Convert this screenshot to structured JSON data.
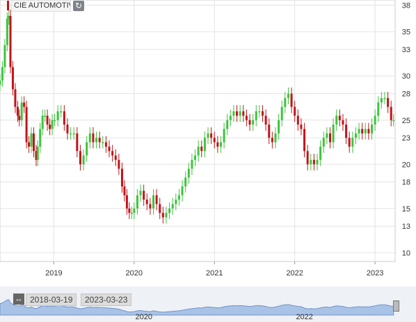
{
  "ticker_label": "CIE AUTOMOTIV",
  "icons": {
    "refresh": "refresh-icon",
    "expand": "expand-arrows-icon"
  },
  "colors": {
    "up": "#3ec43e",
    "down": "#c0151a",
    "navigator_fill": "#a9c3e6",
    "navigator_line": "#6f93c7"
  },
  "navigator": {
    "range_start": "2018-03-19",
    "range_end": "2023-03-23",
    "year_labels": [
      "2020",
      "2022"
    ]
  },
  "chart_data": {
    "type": "candlestick",
    "y_axis": {
      "min": 9,
      "max": 38.6,
      "ticks": [
        10,
        13,
        15,
        18,
        20,
        23,
        25,
        28,
        30,
        33,
        35,
        38
      ]
    },
    "x_axis": {
      "labels": [
        "2019",
        "2020",
        "2021",
        "2022",
        "2023"
      ],
      "start": 2018.33,
      "end": 2023.25
    },
    "grid": true,
    "closes": [
      [
        2018.33,
        29.5
      ],
      [
        2018.36,
        31.0
      ],
      [
        2018.39,
        33.5
      ],
      [
        2018.42,
        36.5
      ],
      [
        2018.44,
        36.8
      ],
      [
        2018.46,
        31.0
      ],
      [
        2018.49,
        28.5
      ],
      [
        2018.52,
        26.5
      ],
      [
        2018.55,
        25.5
      ],
      [
        2018.57,
        25.0
      ],
      [
        2018.6,
        27.0
      ],
      [
        2018.63,
        26.5
      ],
      [
        2018.66,
        22.5
      ],
      [
        2018.69,
        22.0
      ],
      [
        2018.72,
        23.5
      ],
      [
        2018.75,
        21.5
      ],
      [
        2018.78,
        20.5
      ],
      [
        2018.8,
        22.0
      ],
      [
        2018.83,
        24.0
      ],
      [
        2018.86,
        25.5
      ],
      [
        2018.89,
        25.5
      ],
      [
        2018.92,
        24.5
      ],
      [
        2018.95,
        24.0
      ],
      [
        2018.98,
        25.0
      ],
      [
        2019.01,
        25.0
      ],
      [
        2019.05,
        26.0
      ],
      [
        2019.09,
        26.0
      ],
      [
        2019.13,
        24.5
      ],
      [
        2019.17,
        23.5
      ],
      [
        2019.21,
        23.5
      ],
      [
        2019.25,
        23.5
      ],
      [
        2019.29,
        21.5
      ],
      [
        2019.33,
        20.0
      ],
      [
        2019.37,
        21.0
      ],
      [
        2019.41,
        22.5
      ],
      [
        2019.45,
        23.5
      ],
      [
        2019.49,
        22.5
      ],
      [
        2019.53,
        23.0
      ],
      [
        2019.57,
        22.5
      ],
      [
        2019.61,
        22.5
      ],
      [
        2019.65,
        22.0
      ],
      [
        2019.69,
        21.5
      ],
      [
        2019.73,
        21.0
      ],
      [
        2019.77,
        20.5
      ],
      [
        2019.81,
        19.5
      ],
      [
        2019.85,
        17.5
      ],
      [
        2019.88,
        16.5
      ],
      [
        2019.91,
        15.0
      ],
      [
        2019.94,
        14.5
      ],
      [
        2019.97,
        14.5
      ],
      [
        2020.0,
        15.0
      ],
      [
        2020.04,
        16.5
      ],
      [
        2020.08,
        17.0
      ],
      [
        2020.12,
        16.0
      ],
      [
        2020.16,
        15.5
      ],
      [
        2020.2,
        15.0
      ],
      [
        2020.24,
        16.5
      ],
      [
        2020.28,
        15.5
      ],
      [
        2020.32,
        14.5
      ],
      [
        2020.36,
        14.0
      ],
      [
        2020.4,
        14.5
      ],
      [
        2020.44,
        15.0
      ],
      [
        2020.48,
        15.5
      ],
      [
        2020.52,
        16.0
      ],
      [
        2020.56,
        16.5
      ],
      [
        2020.6,
        17.5
      ],
      [
        2020.64,
        18.5
      ],
      [
        2020.68,
        19.5
      ],
      [
        2020.72,
        20.5
      ],
      [
        2020.76,
        21.0
      ],
      [
        2020.8,
        22.0
      ],
      [
        2020.84,
        21.5
      ],
      [
        2020.88,
        23.0
      ],
      [
        2020.92,
        23.5
      ],
      [
        2020.96,
        23.0
      ],
      [
        2021.0,
        22.5
      ],
      [
        2021.04,
        22.0
      ],
      [
        2021.08,
        22.5
      ],
      [
        2021.12,
        24.0
      ],
      [
        2021.16,
        25.0
      ],
      [
        2021.2,
        25.5
      ],
      [
        2021.24,
        26.0
      ],
      [
        2021.28,
        25.5
      ],
      [
        2021.32,
        26.0
      ],
      [
        2021.36,
        25.5
      ],
      [
        2021.4,
        25.0
      ],
      [
        2021.44,
        24.5
      ],
      [
        2021.48,
        25.0
      ],
      [
        2021.52,
        26.0
      ],
      [
        2021.56,
        26.0
      ],
      [
        2021.6,
        25.5
      ],
      [
        2021.64,
        24.5
      ],
      [
        2021.68,
        23.0
      ],
      [
        2021.72,
        22.5
      ],
      [
        2021.76,
        23.5
      ],
      [
        2021.8,
        25.0
      ],
      [
        2021.84,
        26.5
      ],
      [
        2021.88,
        27.5
      ],
      [
        2021.92,
        28.0
      ],
      [
        2021.96,
        26.5
      ],
      [
        2022.0,
        25.5
      ],
      [
        2022.04,
        24.5
      ],
      [
        2022.08,
        24.0
      ],
      [
        2022.12,
        21.5
      ],
      [
        2022.16,
        20.0
      ],
      [
        2022.2,
        20.5
      ],
      [
        2022.24,
        20.0
      ],
      [
        2022.28,
        20.5
      ],
      [
        2022.32,
        22.0
      ],
      [
        2022.36,
        23.0
      ],
      [
        2022.4,
        23.5
      ],
      [
        2022.44,
        22.5
      ],
      [
        2022.48,
        24.5
      ],
      [
        2022.52,
        25.5
      ],
      [
        2022.56,
        25.0
      ],
      [
        2022.6,
        24.5
      ],
      [
        2022.64,
        23.0
      ],
      [
        2022.68,
        22.0
      ],
      [
        2022.72,
        23.0
      ],
      [
        2022.76,
        23.5
      ],
      [
        2022.8,
        24.0
      ],
      [
        2022.84,
        23.5
      ],
      [
        2022.88,
        24.0
      ],
      [
        2022.92,
        23.5
      ],
      [
        2022.96,
        24.5
      ],
      [
        2023.0,
        25.5
      ],
      [
        2023.04,
        27.0
      ],
      [
        2023.08,
        27.5
      ],
      [
        2023.12,
        27.5
      ],
      [
        2023.16,
        26.5
      ],
      [
        2023.2,
        25.0
      ],
      [
        2023.23,
        25.0
      ]
    ]
  }
}
